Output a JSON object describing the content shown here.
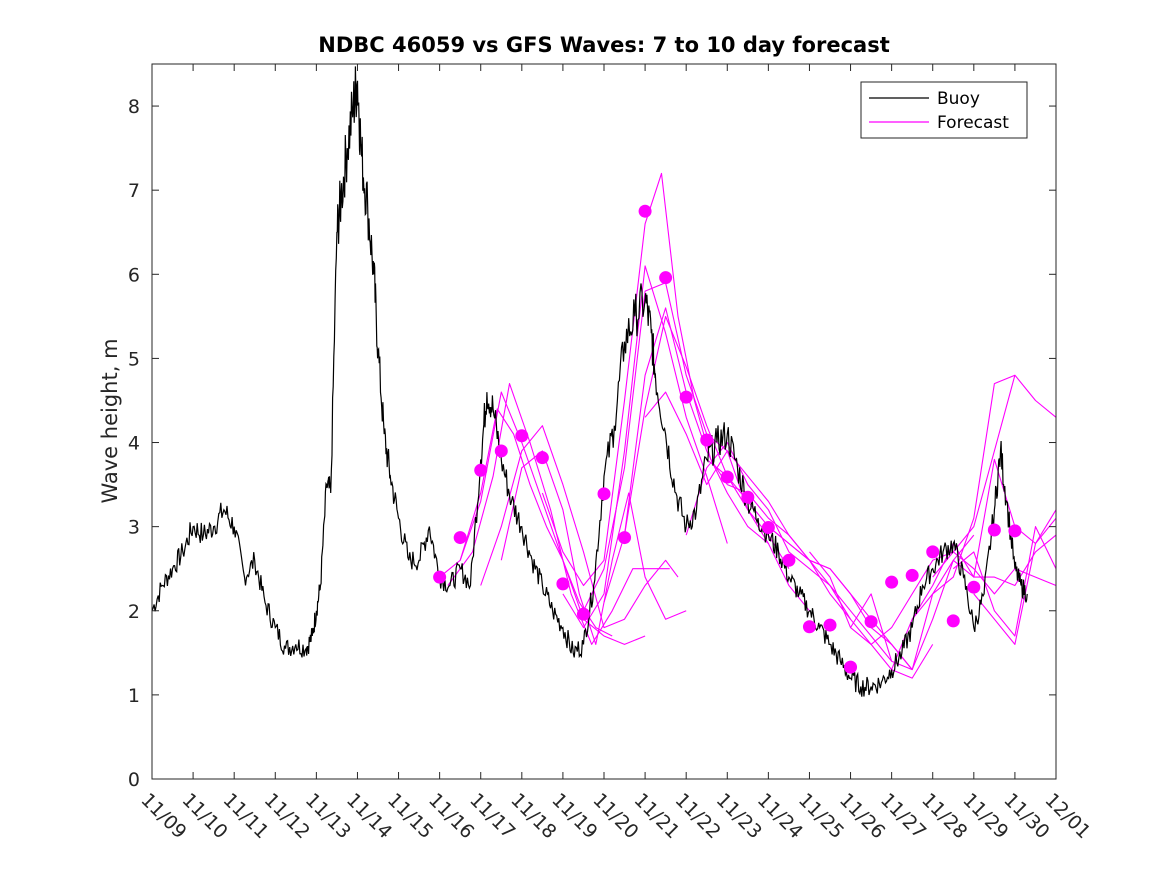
{
  "chart_data": {
    "type": "line",
    "title": "NDBC 46059 vs GFS Waves: 7 to 10 day forecast",
    "xlabel": "",
    "ylabel": "Wave height, m",
    "xlim": [
      0,
      22
    ],
    "ylim": [
      0,
      8.5
    ],
    "xticks": [
      {
        "pos": 0,
        "label": "11/09"
      },
      {
        "pos": 1,
        "label": "11/10"
      },
      {
        "pos": 2,
        "label": "11/11"
      },
      {
        "pos": 3,
        "label": "11/12"
      },
      {
        "pos": 4,
        "label": "11/13"
      },
      {
        "pos": 5,
        "label": "11/14"
      },
      {
        "pos": 6,
        "label": "11/15"
      },
      {
        "pos": 7,
        "label": "11/16"
      },
      {
        "pos": 8,
        "label": "11/17"
      },
      {
        "pos": 9,
        "label": "11/18"
      },
      {
        "pos": 10,
        "label": "11/19"
      },
      {
        "pos": 11,
        "label": "11/20"
      },
      {
        "pos": 12,
        "label": "11/21"
      },
      {
        "pos": 13,
        "label": "11/22"
      },
      {
        "pos": 14,
        "label": "11/23"
      },
      {
        "pos": 15,
        "label": "11/24"
      },
      {
        "pos": 16,
        "label": "11/25"
      },
      {
        "pos": 17,
        "label": "11/26"
      },
      {
        "pos": 18,
        "label": "11/27"
      },
      {
        "pos": 19,
        "label": "11/28"
      },
      {
        "pos": 20,
        "label": "11/29"
      },
      {
        "pos": 21,
        "label": "11/30"
      },
      {
        "pos": 22,
        "label": "12/01"
      }
    ],
    "yticks": [
      "0",
      "1",
      "2",
      "3",
      "4",
      "5",
      "6",
      "7",
      "8"
    ],
    "legend": {
      "position": "top-right",
      "entries": [
        {
          "name": "Buoy",
          "color": "#000000"
        },
        {
          "name": "Forecast",
          "color": "#ff00ff"
        }
      ]
    },
    "buoy": {
      "name": "Buoy",
      "color": "#000000",
      "x": [
        0,
        0.25,
        0.5,
        0.75,
        1.0,
        1.25,
        1.5,
        1.75,
        2.0,
        2.25,
        2.5,
        2.75,
        3.0,
        3.25,
        3.5,
        3.75,
        3.9,
        4.0,
        4.1,
        4.25,
        4.35,
        4.5,
        4.6,
        4.75,
        4.9,
        5.0,
        5.1,
        5.25,
        5.4,
        5.5,
        5.65,
        5.8,
        6.0,
        6.25,
        6.5,
        6.75,
        7.0,
        7.25,
        7.5,
        7.75,
        8.0,
        8.15,
        8.3,
        8.5,
        8.75,
        9.0,
        9.25,
        9.5,
        9.75,
        10.0,
        10.25,
        10.5,
        10.75,
        11.0,
        11.25,
        11.5,
        11.75,
        12.0,
        12.15,
        12.25,
        12.5,
        12.75,
        13.0,
        13.25,
        13.5,
        13.75,
        14.0,
        14.25,
        14.5,
        14.75,
        15.0,
        15.25,
        15.5,
        15.75,
        16.0,
        16.25,
        16.5,
        16.75,
        17.0,
        17.25,
        17.5,
        17.75,
        18.0,
        18.25,
        18.5,
        18.75,
        19.0,
        19.25,
        19.5,
        19.75,
        20.0,
        20.25,
        20.5,
        20.65,
        20.8,
        21.0,
        21.15,
        21.3
      ],
      "values": [
        2.0,
        2.3,
        2.5,
        2.7,
        3.0,
        2.9,
        3.0,
        3.2,
        3.0,
        2.4,
        2.6,
        2.1,
        1.8,
        1.55,
        1.6,
        1.55,
        1.7,
        2.0,
        2.3,
        3.5,
        3.4,
        6.5,
        6.9,
        7.5,
        8.0,
        8.3,
        7.4,
        6.8,
        6.0,
        5.1,
        4.1,
        3.6,
        3.1,
        2.6,
        2.6,
        3.0,
        2.4,
        2.3,
        2.5,
        2.3,
        3.8,
        4.6,
        4.4,
        3.8,
        3.3,
        3.0,
        2.6,
        2.3,
        2.0,
        1.8,
        1.5,
        1.6,
        2.3,
        3.6,
        4.2,
        5.2,
        5.5,
        5.7,
        5.3,
        4.8,
        4.1,
        3.4,
        3.0,
        3.2,
        3.8,
        4.0,
        4.1,
        3.7,
        3.3,
        3.1,
        2.9,
        2.7,
        2.4,
        2.2,
        2.0,
        1.8,
        1.6,
        1.4,
        1.2,
        1.1,
        1.1,
        1.15,
        1.3,
        1.5,
        1.8,
        2.3,
        2.5,
        2.7,
        2.8,
        2.4,
        1.8,
        2.2,
        3.2,
        3.9,
        3.3,
        2.5,
        2.3,
        2.2
      ]
    },
    "forecast_lines": [
      {
        "x": [
          7.0,
          7.5,
          8.0,
          8.4,
          8.8,
          9.2,
          9.6,
          10.0,
          10.4,
          10.8,
          11.2
        ],
        "values": [
          2.4,
          2.6,
          3.4,
          4.4,
          4.1,
          3.5,
          3.0,
          2.6,
          2.1,
          1.8,
          1.7
        ]
      },
      {
        "x": [
          7.5,
          8.0,
          8.5,
          9.0,
          9.5,
          10.0,
          10.5,
          11.0,
          11.5,
          12.0
        ],
        "values": [
          2.6,
          3.3,
          4.6,
          4.0,
          3.3,
          2.6,
          1.9,
          1.7,
          1.6,
          1.7
        ]
      },
      {
        "x": [
          7.2,
          7.8,
          8.3,
          8.7,
          9.2,
          9.7,
          10.2,
          10.7,
          11.2,
          11.7,
          12.2,
          12.6
        ],
        "values": [
          2.3,
          2.7,
          3.6,
          4.7,
          4.0,
          3.2,
          2.2,
          1.6,
          2.0,
          2.5,
          2.5,
          2.5
        ]
      },
      {
        "x": [
          8.0,
          8.5,
          9.0,
          9.5,
          10.0,
          10.5,
          11.0,
          11.5,
          12.0,
          12.5,
          12.8
        ],
        "values": [
          2.3,
          3.0,
          3.9,
          4.2,
          3.5,
          2.7,
          1.8,
          1.9,
          2.3,
          2.6,
          2.4
        ]
      },
      {
        "x": [
          8.5,
          9.0,
          9.5,
          10.0,
          10.4,
          10.8,
          11.2,
          11.6,
          12.0,
          12.5,
          13.0
        ],
        "values": [
          2.6,
          3.7,
          3.9,
          3.2,
          2.2,
          1.6,
          2.6,
          3.4,
          2.4,
          1.9,
          2.0
        ]
      },
      {
        "x": [
          9.5,
          10.0,
          10.5,
          11.0,
          11.5,
          12.0,
          12.4,
          12.8,
          13.2,
          13.6,
          14.0
        ],
        "values": [
          3.4,
          2.7,
          2.3,
          2.6,
          4.5,
          6.6,
          7.2,
          5.5,
          4.5,
          3.8,
          3.5
        ]
      },
      {
        "x": [
          10.0,
          10.5,
          11.0,
          11.5,
          12.0,
          12.5,
          13.0,
          13.5,
          14.0
        ],
        "values": [
          2.2,
          1.8,
          2.2,
          3.9,
          6.1,
          5.3,
          4.3,
          3.6,
          2.8
        ]
      },
      {
        "x": [
          10.5,
          11.0,
          11.5,
          12.0,
          12.5,
          13.0,
          13.5,
          14.0,
          14.5,
          15.0
        ],
        "values": [
          2.0,
          2.5,
          3.7,
          5.8,
          5.9,
          4.8,
          4.1,
          3.9,
          3.2,
          2.8
        ]
      },
      {
        "x": [
          11.0,
          11.5,
          12.0,
          12.5,
          13.0,
          13.5,
          14.0,
          14.5,
          15.0,
          15.5
        ],
        "values": [
          2.1,
          2.9,
          4.4,
          5.5,
          4.9,
          4.2,
          3.6,
          3.2,
          2.9,
          2.5
        ]
      },
      {
        "x": [
          11.5,
          12.0,
          12.5,
          13.0,
          13.5,
          14.0,
          14.5,
          15.0,
          15.5,
          16.0
        ],
        "values": [
          2.9,
          4.8,
          5.6,
          4.6,
          3.9,
          3.4,
          3.0,
          2.8,
          2.3,
          2.0
        ]
      },
      {
        "x": [
          12.0,
          12.5,
          13.0,
          13.5,
          14.0,
          14.5,
          15.0,
          15.5,
          16.0,
          16.5,
          17.0
        ],
        "values": [
          4.3,
          4.6,
          4.1,
          3.5,
          3.9,
          3.6,
          3.3,
          2.9,
          2.6,
          2.2,
          1.9
        ]
      },
      {
        "x": [
          13.0,
          13.5,
          14.0,
          14.5,
          15.0,
          15.5,
          16.0,
          16.5,
          17.0,
          17.5,
          18.0
        ],
        "values": [
          2.9,
          3.7,
          4.0,
          3.5,
          3.2,
          2.7,
          2.5,
          2.3,
          2.0,
          1.7,
          1.4
        ]
      },
      {
        "x": [
          13.5,
          14.0,
          14.5,
          15.0,
          15.5,
          16.0,
          16.5,
          17.0,
          17.5,
          18.0,
          18.5
        ],
        "values": [
          3.8,
          3.6,
          3.3,
          3.0,
          2.8,
          2.6,
          2.5,
          2.2,
          1.8,
          1.6,
          1.3
        ]
      },
      {
        "x": [
          14.0,
          14.5,
          15.0,
          15.5,
          16.0,
          16.5,
          17.0,
          17.5,
          18.0,
          18.5,
          19.0
        ],
        "values": [
          3.5,
          3.4,
          3.1,
          2.9,
          2.6,
          2.3,
          1.9,
          1.6,
          1.3,
          1.2,
          1.6
        ]
      },
      {
        "x": [
          15.0,
          15.5,
          16.0,
          16.5,
          17.0,
          17.5,
          18.0,
          18.5,
          19.0,
          19.5,
          20.0
        ],
        "values": [
          3.0,
          2.8,
          2.6,
          2.5,
          2.2,
          1.9,
          1.6,
          1.3,
          1.9,
          2.6,
          2.9
        ]
      },
      {
        "x": [
          16.0,
          16.5,
          17.0,
          17.5,
          18.0,
          18.5,
          19.0,
          19.5,
          20.0,
          20.5,
          21.0
        ],
        "values": [
          2.7,
          2.4,
          1.8,
          1.6,
          1.8,
          2.2,
          2.6,
          2.7,
          3.0,
          3.9,
          4.8
        ]
      },
      {
        "x": [
          17.0,
          17.5,
          18.0,
          18.5,
          19.0,
          19.5,
          20.0,
          20.5,
          21.0,
          21.5,
          22.0
        ],
        "values": [
          1.8,
          2.2,
          1.4,
          1.3,
          2.2,
          2.4,
          3.1,
          4.7,
          4.8,
          4.5,
          4.3
        ]
      },
      {
        "x": [
          18.0,
          18.5,
          19.0,
          19.5,
          20.0,
          20.5,
          21.0,
          21.5,
          22.0
        ],
        "values": [
          1.3,
          1.9,
          2.3,
          2.8,
          2.4,
          3.8,
          3.0,
          2.8,
          3.2
        ]
      },
      {
        "x": [
          18.5,
          19.0,
          19.5,
          20.0,
          20.5,
          21.0,
          21.5,
          22.0
        ],
        "values": [
          1.9,
          2.2,
          2.6,
          2.4,
          2.4,
          2.3,
          2.7,
          2.9
        ]
      },
      {
        "x": [
          19.0,
          19.5,
          20.0,
          20.5,
          21.0,
          21.5,
          22.0
        ],
        "values": [
          2.4,
          2.7,
          2.5,
          2.2,
          2.5,
          2.4,
          2.3
        ]
      },
      {
        "x": [
          19.5,
          20.0,
          20.5,
          21.0,
          21.5,
          22.0
        ],
        "values": [
          2.5,
          2.7,
          2.0,
          1.7,
          3.0,
          2.5
        ]
      },
      {
        "x": [
          20.0,
          20.5,
          21.0,
          21.5,
          22.0
        ],
        "values": [
          2.2,
          1.9,
          1.6,
          2.8,
          3.1
        ]
      }
    ],
    "forecast_markers": {
      "name": "Forecast",
      "color": "#ff00ff",
      "x": [
        7.0,
        7.5,
        8.0,
        8.5,
        9.0,
        9.5,
        10.0,
        10.5,
        11.0,
        11.5,
        12.0,
        12.5,
        13.0,
        13.5,
        14.0,
        14.5,
        15.0,
        15.5,
        16.0,
        16.5,
        17.0,
        17.5,
        18.0,
        18.5,
        19.0,
        19.5,
        20.0,
        20.5,
        21.0
      ],
      "values": [
        2.4,
        2.87,
        3.67,
        3.9,
        4.08,
        3.82,
        2.32,
        1.96,
        3.39,
        2.87,
        6.75,
        5.96,
        4.54,
        4.03,
        3.59,
        3.35,
        2.99,
        2.6,
        1.81,
        1.83,
        1.33,
        1.87,
        2.34,
        2.42,
        2.7,
        1.88,
        2.28,
        2.96,
        2.95
      ]
    }
  }
}
